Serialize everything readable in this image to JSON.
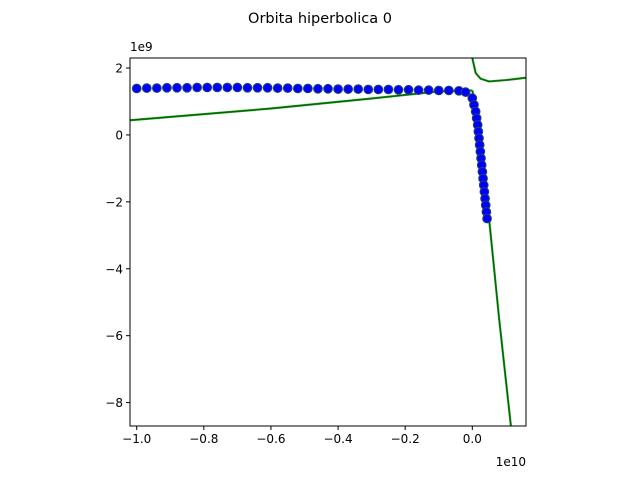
{
  "chart_data": {
    "type": "scatter",
    "title": "Orbita hiperbolica 0",
    "xlabel": "",
    "ylabel": "",
    "x_offset_label": "1e10",
    "y_offset_label": "1e9",
    "xlim": [
      -1.02,
      0.16
    ],
    "ylim": [
      -8.7,
      2.3
    ],
    "x_ticks": [
      {
        "value": -1.0,
        "label": "−1.0"
      },
      {
        "value": -0.8,
        "label": "−0.8"
      },
      {
        "value": -0.6,
        "label": "−0.6"
      },
      {
        "value": -0.4,
        "label": "−0.4"
      },
      {
        "value": -0.2,
        "label": "−0.2"
      },
      {
        "value": 0.0,
        "label": "0.0"
      }
    ],
    "y_ticks": [
      {
        "value": 2,
        "label": "2"
      },
      {
        "value": 0,
        "label": "0"
      },
      {
        "value": -2,
        "label": "−2"
      },
      {
        "value": -4,
        "label": "−4"
      },
      {
        "value": -6,
        "label": "−6"
      },
      {
        "value": -8,
        "label": "−8"
      }
    ],
    "grid": false,
    "colors": {
      "curve_dark": "#006400",
      "curve_light": "#2ca02c",
      "points_fill": "#0000ff",
      "points_edge": "#1f3f6f"
    },
    "series": [
      {
        "kind": "line",
        "values": [
          [
            -1.02,
            0.44
          ],
          [
            -0.6,
            0.79
          ],
          [
            -0.3,
            1.09
          ],
          [
            -0.1,
            1.3
          ],
          [
            0.0,
            1.33
          ]
        ]
      },
      {
        "kind": "line",
        "values": [
          [
            0.0,
            1.33
          ],
          [
            0.02,
            0.4
          ],
          [
            0.035,
            -1.0
          ],
          [
            0.05,
            -2.5
          ],
          [
            0.08,
            -5.5
          ],
          [
            0.115,
            -8.7
          ]
        ]
      },
      {
        "kind": "line",
        "values": [
          [
            0.0,
            2.3
          ],
          [
            0.01,
            1.85
          ],
          [
            0.025,
            1.68
          ],
          [
            0.05,
            1.6
          ],
          [
            0.1,
            1.64
          ],
          [
            0.16,
            1.71
          ]
        ]
      },
      {
        "kind": "scatter",
        "values": [
          [
            -1.12,
            1.38
          ],
          [
            -1.08,
            1.39
          ],
          [
            -1.04,
            1.39
          ],
          [
            -1.0,
            1.39
          ],
          [
            -0.97,
            1.4
          ],
          [
            -0.94,
            1.4
          ],
          [
            -0.91,
            1.41
          ],
          [
            -0.88,
            1.41
          ],
          [
            -0.85,
            1.41
          ],
          [
            -0.82,
            1.42
          ],
          [
            -0.79,
            1.42
          ],
          [
            -0.76,
            1.42
          ],
          [
            -0.73,
            1.42
          ],
          [
            -0.7,
            1.42
          ],
          [
            -0.67,
            1.41
          ],
          [
            -0.64,
            1.41
          ],
          [
            -0.61,
            1.41
          ],
          [
            -0.58,
            1.4
          ],
          [
            -0.55,
            1.4
          ],
          [
            -0.52,
            1.39
          ],
          [
            -0.49,
            1.39
          ],
          [
            -0.46,
            1.38
          ],
          [
            -0.43,
            1.38
          ],
          [
            -0.4,
            1.37
          ],
          [
            -0.37,
            1.37
          ],
          [
            -0.34,
            1.37
          ],
          [
            -0.31,
            1.36
          ],
          [
            -0.28,
            1.36
          ],
          [
            -0.25,
            1.36
          ],
          [
            -0.22,
            1.35
          ],
          [
            -0.19,
            1.35
          ],
          [
            -0.16,
            1.34
          ],
          [
            -0.13,
            1.34
          ],
          [
            -0.1,
            1.33
          ],
          [
            -0.07,
            1.33
          ],
          [
            -0.04,
            1.32
          ],
          [
            -0.02,
            1.28
          ],
          [
            0.0,
            1.1
          ],
          [
            0.005,
            0.9
          ],
          [
            0.01,
            0.7
          ],
          [
            0.013,
            0.5
          ],
          [
            0.016,
            0.3
          ],
          [
            0.018,
            0.1
          ],
          [
            0.02,
            -0.1
          ],
          [
            0.022,
            -0.3
          ],
          [
            0.024,
            -0.5
          ],
          [
            0.026,
            -0.7
          ],
          [
            0.028,
            -0.9
          ],
          [
            0.03,
            -1.1
          ],
          [
            0.032,
            -1.3
          ],
          [
            0.034,
            -1.5
          ],
          [
            0.036,
            -1.7
          ],
          [
            0.038,
            -1.9
          ],
          [
            0.04,
            -2.1
          ],
          [
            0.042,
            -2.3
          ],
          [
            0.044,
            -2.5
          ]
        ]
      }
    ]
  }
}
